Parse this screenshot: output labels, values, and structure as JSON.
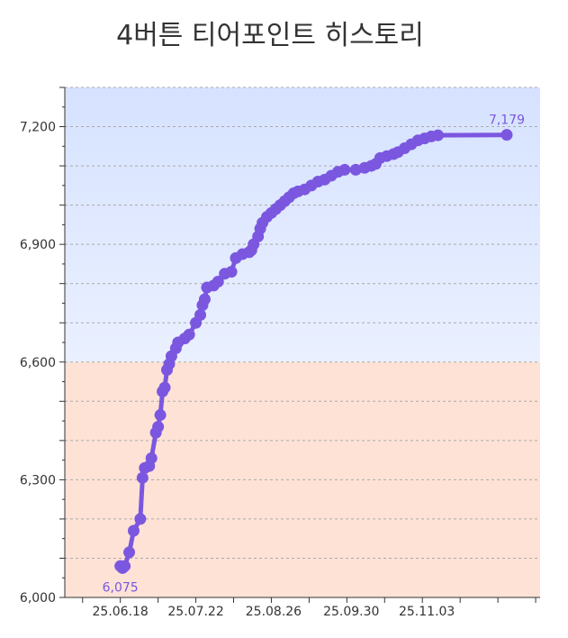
{
  "title": "4버튼 티어포인트 히스토리",
  "colors": {
    "line": "#7b57e0",
    "upper_band_top": "#d6e2ff",
    "upper_band_bottom": "#eaf0ff",
    "lower_band": "#fee2d6",
    "grid": "#aaaaaa"
  },
  "chart_data": {
    "type": "line",
    "title": "4버튼 티어포인트 히스토리",
    "xlabel": "",
    "ylabel": "",
    "ylim": [
      6000,
      7300
    ],
    "yticks": [
      6000,
      6300,
      6600,
      6900,
      7200
    ],
    "ytick_labels": [
      "6,000",
      "6,300",
      "6,600",
      "6,900",
      "7,200"
    ],
    "xlim": [
      "2025-05-24",
      "2025-12-24"
    ],
    "xticks": [
      "2025-06-18",
      "2025-07-22",
      "2025-08-26",
      "2025-09-30",
      "2025-11-03"
    ],
    "xtick_labels": [
      "25.06.18",
      "25.07.22",
      "25.08.26",
      "25.09.30",
      "25.11.03"
    ],
    "grid": true,
    "bands": [
      {
        "from": 6000,
        "to": 6600
      },
      {
        "from": 6600,
        "to": 7300
      }
    ],
    "annotations": [
      {
        "text": "6,075",
        "x": "2025-06-18",
        "y": 6075
      },
      {
        "text": "7,179",
        "x": "2025-12-09",
        "y": 7179
      }
    ],
    "series": [
      {
        "points": [
          [
            "2025-06-18",
            6080
          ],
          [
            "2025-06-19",
            6075
          ],
          [
            "2025-06-20",
            6080
          ],
          [
            "2025-06-22",
            6115
          ],
          [
            "2025-06-24",
            6170
          ],
          [
            "2025-06-27",
            6200
          ],
          [
            "2025-06-28",
            6305
          ],
          [
            "2025-06-29",
            6330
          ],
          [
            "2025-07-01",
            6335
          ],
          [
            "2025-07-02",
            6355
          ],
          [
            "2025-07-04",
            6420
          ],
          [
            "2025-07-05",
            6435
          ],
          [
            "2025-07-06",
            6465
          ],
          [
            "2025-07-07",
            6525
          ],
          [
            "2025-07-08",
            6535
          ],
          [
            "2025-07-09",
            6580
          ],
          [
            "2025-07-10",
            6595
          ],
          [
            "2025-07-11",
            6615
          ],
          [
            "2025-07-13",
            6635
          ],
          [
            "2025-07-14",
            6650
          ],
          [
            "2025-07-17",
            6660
          ],
          [
            "2025-07-19",
            6670
          ],
          [
            "2025-07-22",
            6700
          ],
          [
            "2025-07-24",
            6720
          ],
          [
            "2025-07-25",
            6745
          ],
          [
            "2025-07-26",
            6760
          ],
          [
            "2025-07-27",
            6790
          ],
          [
            "2025-07-30",
            6795
          ],
          [
            "2025-08-01",
            6805
          ],
          [
            "2025-08-04",
            6825
          ],
          [
            "2025-08-07",
            6830
          ],
          [
            "2025-08-09",
            6865
          ],
          [
            "2025-08-12",
            6875
          ],
          [
            "2025-08-15",
            6880
          ],
          [
            "2025-08-16",
            6885
          ],
          [
            "2025-08-17",
            6900
          ],
          [
            "2025-08-19",
            6920
          ],
          [
            "2025-08-20",
            6940
          ],
          [
            "2025-08-21",
            6955
          ],
          [
            "2025-08-23",
            6970
          ],
          [
            "2025-08-25",
            6980
          ],
          [
            "2025-08-27",
            6990
          ],
          [
            "2025-08-29",
            7000
          ],
          [
            "2025-08-31",
            7010
          ],
          [
            "2025-09-02",
            7020
          ],
          [
            "2025-09-04",
            7030
          ],
          [
            "2025-09-06",
            7035
          ],
          [
            "2025-09-09",
            7040
          ],
          [
            "2025-09-12",
            7050
          ],
          [
            "2025-09-15",
            7060
          ],
          [
            "2025-09-18",
            7065
          ],
          [
            "2025-09-21",
            7075
          ],
          [
            "2025-09-24",
            7085
          ],
          [
            "2025-09-27",
            7090
          ],
          [
            "2025-10-02",
            7090
          ],
          [
            "2025-10-06",
            7095
          ],
          [
            "2025-10-09",
            7100
          ],
          [
            "2025-10-11",
            7105
          ],
          [
            "2025-10-13",
            7120
          ],
          [
            "2025-10-16",
            7125
          ],
          [
            "2025-10-19",
            7130
          ],
          [
            "2025-10-21",
            7135
          ],
          [
            "2025-10-24",
            7145
          ],
          [
            "2025-10-27",
            7155
          ],
          [
            "2025-10-30",
            7165
          ],
          [
            "2025-11-02",
            7170
          ],
          [
            "2025-11-05",
            7175
          ],
          [
            "2025-11-08",
            7178
          ],
          [
            "2025-12-09",
            7179
          ]
        ]
      }
    ]
  }
}
